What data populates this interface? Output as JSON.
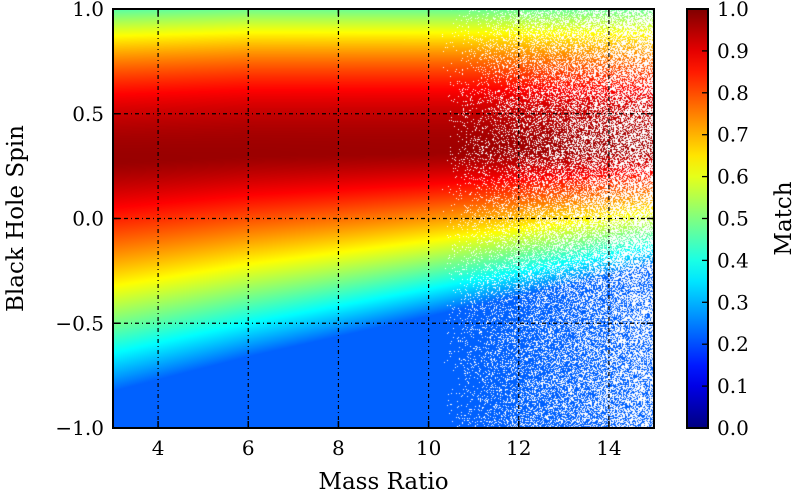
{
  "chart_data": {
    "type": "heatmap",
    "title": "",
    "xlabel": "Mass Ratio",
    "ylabel": "Black Hole Spin",
    "xlim": [
      3,
      15
    ],
    "ylim": [
      -1.0,
      1.0
    ],
    "xticks": [
      4,
      6,
      8,
      10,
      12,
      14
    ],
    "xtick_labels": [
      "4",
      "6",
      "8",
      "10",
      "12",
      "14"
    ],
    "yticks": [
      -1.0,
      -0.5,
      0.0,
      0.5,
      1.0
    ],
    "ytick_labels": [
      "−1.0",
      "−0.5",
      "0.0",
      "0.5",
      "1.0"
    ],
    "grid": true,
    "colorbar": {
      "label": "Match",
      "range": [
        0.0,
        1.0
      ],
      "ticks": [
        0.0,
        0.1,
        0.2,
        0.3,
        0.4,
        0.5,
        0.6,
        0.7,
        0.8,
        0.9,
        1.0
      ],
      "tick_labels": [
        "0.0",
        "0.1",
        "0.2",
        "0.3",
        "0.4",
        "0.5",
        "0.6",
        "0.7",
        "0.8",
        "0.9",
        "1.0"
      ],
      "colormap": "jet"
    },
    "ridge": {
      "description": "spin of maximum match versus mass ratio",
      "mass_ratio": [
        3,
        6,
        9,
        12,
        15
      ],
      "spin": [
        0.27,
        0.3,
        0.31,
        0.32,
        0.33
      ]
    },
    "sample_matches": [
      {
        "mass_ratio": 4,
        "spin": 0.3,
        "match": 0.97
      },
      {
        "mass_ratio": 4,
        "spin": 0.8,
        "match": 0.82
      },
      {
        "mass_ratio": 4,
        "spin": -0.5,
        "match": 0.62
      },
      {
        "mass_ratio": 8,
        "spin": 0.3,
        "match": 0.97
      },
      {
        "mass_ratio": 8,
        "spin": -0.5,
        "match": 0.48
      },
      {
        "mass_ratio": 12,
        "spin": -0.8,
        "match": 0.33
      },
      {
        "mass_ratio": 14,
        "spin": -1.0,
        "match": 0.27
      }
    ]
  }
}
